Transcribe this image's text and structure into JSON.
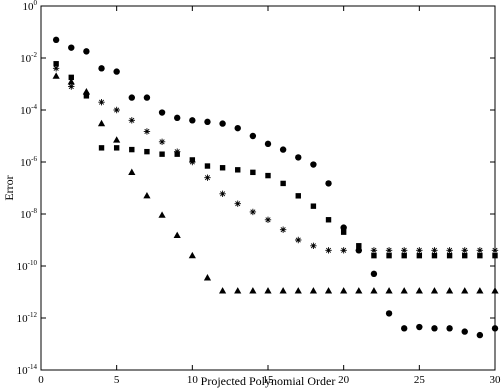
{
  "chart_data": {
    "type": "scatter",
    "title": "",
    "xlabel": "Projected Polynomial Order",
    "ylabel": "Error",
    "xlim": [
      0,
      30
    ],
    "ylim_log10": [
      -14,
      0
    ],
    "yscale": "log",
    "grid": false,
    "legend": "none",
    "x_ticks": [
      0,
      5,
      10,
      15,
      20,
      25,
      30
    ],
    "y_ticks": [
      {
        "base": "10",
        "exp": "0",
        "value": 1
      },
      {
        "base": "10",
        "exp": "-2",
        "value": 0.01
      },
      {
        "base": "10",
        "exp": "-4",
        "value": 0.0001
      },
      {
        "base": "10",
        "exp": "-6",
        "value": 1e-06
      },
      {
        "base": "10",
        "exp": "-8",
        "value": 1e-08
      },
      {
        "base": "10",
        "exp": "-10",
        "value": 1e-10
      },
      {
        "base": "10",
        "exp": "-12",
        "value": 1e-12
      },
      {
        "base": "10",
        "exp": "-14",
        "value": 1e-14
      }
    ],
    "series": [
      {
        "marker": "circle",
        "points": [
          [
            1,
            0.05
          ],
          [
            2,
            0.025
          ],
          [
            3,
            0.018
          ],
          [
            4,
            0.004
          ],
          [
            5,
            0.003
          ],
          [
            6,
            0.0003
          ],
          [
            7,
            0.0003
          ],
          [
            8,
            8e-05
          ],
          [
            9,
            5e-05
          ],
          [
            10,
            4e-05
          ],
          [
            11,
            3.5e-05
          ],
          [
            12,
            3e-05
          ],
          [
            13,
            2e-05
          ],
          [
            14,
            1e-05
          ],
          [
            15,
            5e-06
          ],
          [
            16,
            3e-06
          ],
          [
            17,
            1.5e-06
          ],
          [
            18,
            8e-07
          ],
          [
            19,
            1.5e-07
          ],
          [
            20,
            3e-09
          ],
          [
            21,
            4e-10
          ],
          [
            22,
            5e-11
          ],
          [
            23,
            1.5e-12
          ],
          [
            24,
            4e-13
          ],
          [
            25,
            4.5e-13
          ],
          [
            26,
            4e-13
          ],
          [
            27,
            4e-13
          ],
          [
            28,
            3e-13
          ],
          [
            29,
            2.2e-13
          ],
          [
            30,
            4e-13
          ]
        ]
      },
      {
        "marker": "square",
        "points": [
          [
            1,
            0.006
          ],
          [
            2,
            0.0018
          ],
          [
            3,
            0.00035
          ],
          [
            4,
            3.5e-06
          ],
          [
            5,
            3.5e-06
          ],
          [
            6,
            3e-06
          ],
          [
            7,
            2.5e-06
          ],
          [
            8,
            2e-06
          ],
          [
            9,
            2e-06
          ],
          [
            10,
            1.2e-06
          ],
          [
            11,
            7e-07
          ],
          [
            12,
            6e-07
          ],
          [
            13,
            5e-07
          ],
          [
            14,
            4e-07
          ],
          [
            15,
            3e-07
          ],
          [
            16,
            1.5e-07
          ],
          [
            17,
            5e-08
          ],
          [
            18,
            2e-08
          ],
          [
            19,
            6e-09
          ],
          [
            20,
            2e-09
          ],
          [
            21,
            6e-10
          ],
          [
            22,
            2.5e-10
          ],
          [
            23,
            2.5e-10
          ],
          [
            24,
            2.5e-10
          ],
          [
            25,
            2.5e-10
          ],
          [
            26,
            2.5e-10
          ],
          [
            27,
            2.5e-10
          ],
          [
            28,
            2.5e-10
          ],
          [
            29,
            2.5e-10
          ],
          [
            30,
            2.5e-10
          ]
        ]
      },
      {
        "marker": "star",
        "points": [
          [
            1,
            0.004
          ],
          [
            2,
            0.0008
          ],
          [
            3,
            0.0004
          ],
          [
            4,
            0.0002
          ],
          [
            5,
            0.0001
          ],
          [
            6,
            4e-05
          ],
          [
            7,
            1.5e-05
          ],
          [
            8,
            6e-06
          ],
          [
            9,
            2.5e-06
          ],
          [
            10,
            1e-06
          ],
          [
            11,
            2.5e-07
          ],
          [
            12,
            6e-08
          ],
          [
            13,
            2.5e-08
          ],
          [
            14,
            1.2e-08
          ],
          [
            15,
            6e-09
          ],
          [
            16,
            2.5e-09
          ],
          [
            17,
            1e-09
          ],
          [
            18,
            6e-10
          ],
          [
            19,
            4e-10
          ],
          [
            20,
            4e-10
          ],
          [
            21,
            4e-10
          ],
          [
            22,
            4e-10
          ],
          [
            23,
            4e-10
          ],
          [
            24,
            4e-10
          ],
          [
            25,
            4e-10
          ],
          [
            26,
            4e-10
          ],
          [
            27,
            4e-10
          ],
          [
            28,
            4e-10
          ],
          [
            29,
            4e-10
          ],
          [
            30,
            4e-10
          ]
        ]
      },
      {
        "marker": "triangle",
        "points": [
          [
            1,
            0.002
          ],
          [
            2,
            0.0012
          ],
          [
            3,
            0.0005
          ],
          [
            4,
            3e-05
          ],
          [
            5,
            7e-06
          ],
          [
            6,
            4e-07
          ],
          [
            7,
            5e-08
          ],
          [
            8,
            9e-09
          ],
          [
            9,
            1.5e-09
          ],
          [
            10,
            2.5e-10
          ],
          [
            11,
            3.5e-11
          ],
          [
            12,
            1.1e-11
          ],
          [
            13,
            1.1e-11
          ],
          [
            14,
            1.1e-11
          ],
          [
            15,
            1.1e-11
          ],
          [
            16,
            1.1e-11
          ],
          [
            17,
            1.1e-11
          ],
          [
            18,
            1.1e-11
          ],
          [
            19,
            1.1e-11
          ],
          [
            20,
            1.1e-11
          ],
          [
            21,
            1.1e-11
          ],
          [
            22,
            1.1e-11
          ],
          [
            23,
            1.1e-11
          ],
          [
            24,
            1.1e-11
          ],
          [
            25,
            1.1e-11
          ],
          [
            26,
            1.1e-11
          ],
          [
            27,
            1.1e-11
          ],
          [
            28,
            1.1e-11
          ],
          [
            29,
            1.1e-11
          ],
          [
            30,
            1.1e-11
          ]
        ]
      }
    ]
  }
}
